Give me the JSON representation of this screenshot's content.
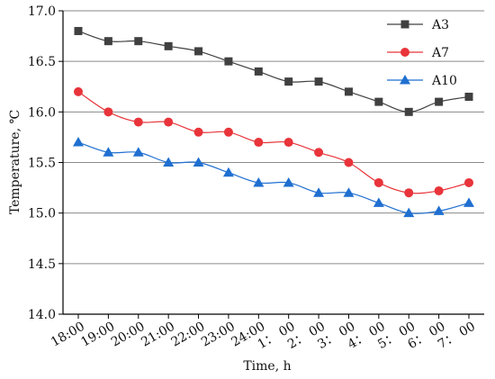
{
  "chart_data": {
    "type": "line",
    "title": "",
    "xlabel": "Time, h",
    "ylabel": "Temperature, ℃",
    "ylim": [
      14.0,
      17.0
    ],
    "yticks": [
      "14.0",
      "14.5",
      "15.0",
      "15.5",
      "16.0",
      "16.5",
      "17.0"
    ],
    "grid": "horizontal",
    "legend_position": "top-right",
    "categories": [
      "18:00",
      "19:00",
      "20:00",
      "21:00",
      "22:00",
      "23:00",
      "24:00",
      "1： 00",
      "2： 00",
      "3： 00",
      "4： 00",
      "5： 00",
      "6： 00",
      "7： 00"
    ],
    "series": [
      {
        "name": "A3",
        "color": "#404040",
        "marker": "square",
        "values": [
          16.8,
          16.7,
          16.7,
          16.65,
          16.6,
          16.5,
          16.4,
          16.3,
          16.3,
          16.2,
          16.1,
          16.0,
          16.1,
          16.15
        ]
      },
      {
        "name": "A7",
        "color": "#e8343a",
        "marker": "circle",
        "values": [
          16.2,
          16.0,
          15.9,
          15.9,
          15.8,
          15.8,
          15.7,
          15.7,
          15.6,
          15.5,
          15.3,
          15.2,
          15.22,
          15.3
        ]
      },
      {
        "name": "A10",
        "color": "#1f6fd1",
        "marker": "triangle",
        "values": [
          15.7,
          15.6,
          15.6,
          15.5,
          15.5,
          15.4,
          15.3,
          15.3,
          15.2,
          15.2,
          15.1,
          15.0,
          15.02,
          15.1
        ]
      }
    ]
  }
}
